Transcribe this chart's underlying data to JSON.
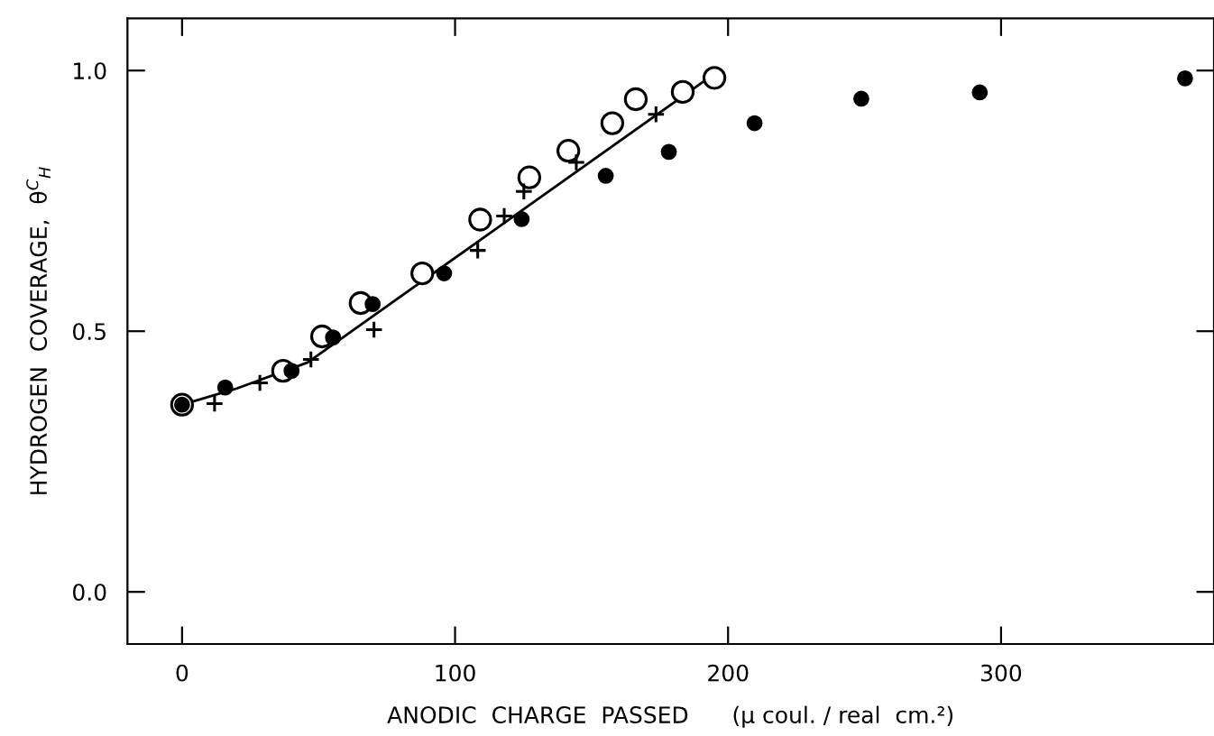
{
  "chart_data": {
    "type": "scatter",
    "xlabel": "ANODIC  CHARGE  PASSED      (μ coul. / real  cm.²)",
    "ylabel": "HYDROGEN  COVERAGE,  θ$^{C}$$_{H}$",
    "xlim": [
      -20,
      378
    ],
    "ylim": [
      -0.1,
      1.1
    ],
    "xticks": [
      0,
      100,
      200,
      300
    ],
    "yticks": [
      {
        "value": 0,
        "label": "0.0"
      },
      {
        "value": 0.5,
        "label": "0.5"
      },
      {
        "value": 1,
        "label": "1.0"
      }
    ],
    "grid": false,
    "series": [
      {
        "type": "line",
        "color": "#000000",
        "marker": "none",
        "line_style": "solid",
        "x": [
          0,
          20,
          46,
          194
        ],
        "values": [
          0.359,
          0.39,
          0.44,
          0.99
        ]
      },
      {
        "color": "#ffffff",
        "marker": "circle",
        "x": [
          0,
          37,
          51.3,
          65.4,
          88,
          109.2,
          127.2,
          141.5,
          157.6,
          166.2,
          183.4,
          195
        ],
        "values": [
          0.359,
          0.424,
          0.49,
          0.554,
          0.611,
          0.714,
          0.795,
          0.846,
          0.899,
          0.945,
          0.959,
          0.986
        ]
      },
      {
        "color": "#000000",
        "marker": "circle",
        "x": [
          0,
          15.8,
          40.1,
          55.3,
          69.8,
          96,
          124.4,
          155.2,
          178.3,
          209.7,
          248.8,
          292.2,
          367.4
        ],
        "values": [
          0.359,
          0.392,
          0.424,
          0.488,
          0.552,
          0.611,
          0.715,
          0.798,
          0.844,
          0.899,
          0.946,
          0.958,
          0.985
        ]
      },
      {
        "color": "#000000",
        "marker": "cross",
        "x": [
          11.9,
          28.5,
          47.2,
          70.3,
          108.3,
          118,
          125.2,
          144.4,
          173.6
        ],
        "values": [
          0.361,
          0.401,
          0.446,
          0.503,
          0.655,
          0.721,
          0.768,
          0.824,
          0.916
        ]
      }
    ]
  }
}
